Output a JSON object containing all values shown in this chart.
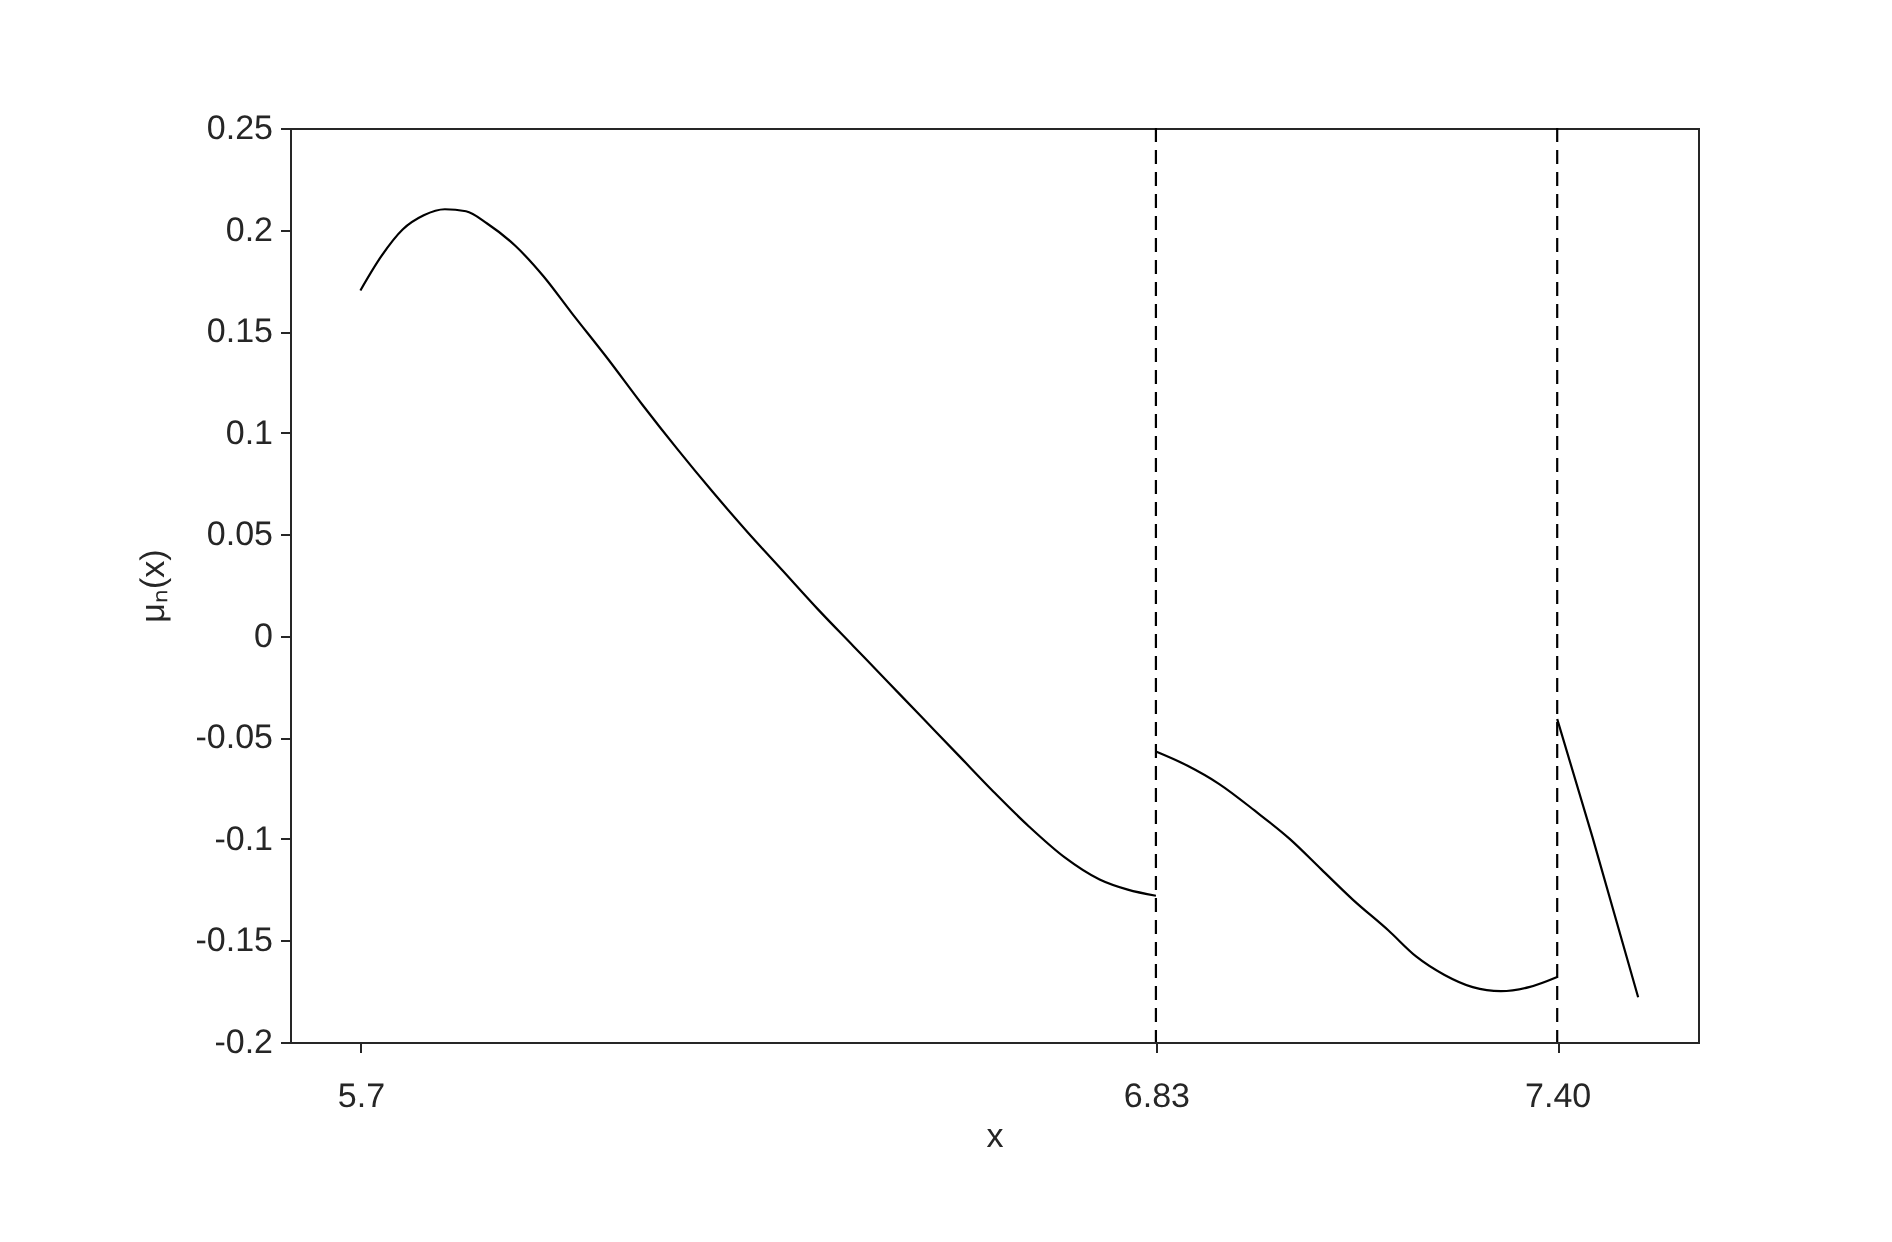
{
  "chart_data": {
    "type": "line",
    "xlabel": "x",
    "ylabel": "μₙ(x)",
    "xlim": [
      5.6,
      7.6
    ],
    "ylim": [
      -0.2,
      0.25
    ],
    "xticks": [
      5.7,
      6.83,
      {
        "value": 7.4,
        "label": "7.40"
      }
    ],
    "yticks": [
      -0.2,
      -0.15,
      -0.1,
      -0.05,
      0,
      0.05,
      0.1,
      0.15,
      0.2,
      0.25
    ],
    "grid": false,
    "series": [
      {
        "color": "#000000",
        "x": [
          5.7,
          5.73,
          5.76,
          5.79,
          5.82,
          5.85,
          5.88,
          5.92,
          5.96,
          6.0,
          6.05,
          6.1,
          6.15,
          6.2,
          6.25,
          6.3,
          6.35,
          6.4,
          6.45,
          6.5,
          6.55,
          6.6,
          6.65,
          6.7,
          6.75,
          6.79,
          6.83
        ],
        "values": [
          0.17,
          0.187,
          0.2,
          0.207,
          0.21,
          0.209,
          0.203,
          0.192,
          0.177,
          0.159,
          0.137,
          0.114,
          0.092,
          0.071,
          0.051,
          0.032,
          0.013,
          -0.005,
          -0.023,
          -0.041,
          -0.059,
          -0.077,
          -0.094,
          -0.109,
          -0.12,
          -0.125,
          -0.128
        ]
      },
      {
        "color": "#000000",
        "x": [
          6.83,
          6.875,
          6.92,
          6.97,
          7.02,
          7.065,
          7.11,
          7.16,
          7.2,
          7.24,
          7.28,
          7.32,
          7.36,
          7.4
        ],
        "values": [
          -0.057,
          -0.064,
          -0.073,
          -0.086,
          -0.1,
          -0.115,
          -0.13,
          -0.145,
          -0.158,
          -0.167,
          -0.173,
          -0.175,
          -0.173,
          -0.168
        ]
      },
      {
        "color": "#000000",
        "x": [
          7.4,
          7.45,
          7.515
        ],
        "values": [
          -0.041,
          -0.099,
          -0.178
        ]
      }
    ],
    "ref_lines": [
      {
        "axis": "x",
        "value": 6.83,
        "color": "#000000",
        "line_style": "dashed"
      },
      {
        "axis": "x",
        "value": 7.4,
        "color": "#000000",
        "line_style": "dashed"
      }
    ]
  }
}
